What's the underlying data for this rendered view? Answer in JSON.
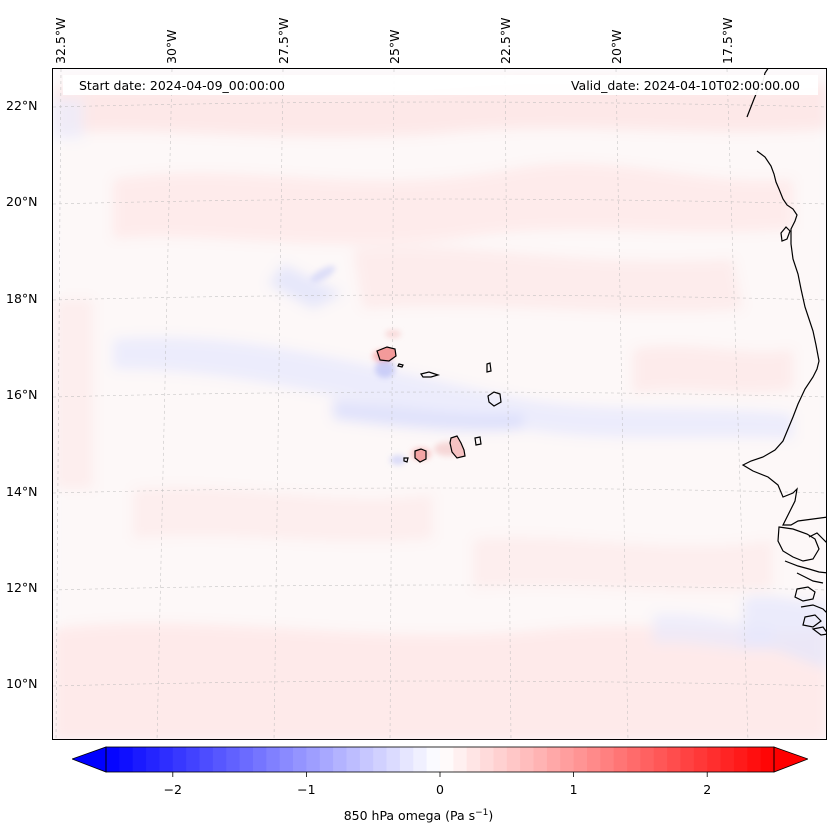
{
  "map": {
    "start_date": "Start date: 2024-04-09_00:00:00",
    "valid_date": "Valid_date: 2024-04-10T02:00:00.00",
    "lon_labels": [
      "32.5°W",
      "30°W",
      "27.5°W",
      "25°W",
      "22.5°W",
      "20°W",
      "17.5°W"
    ],
    "lat_labels": [
      "22°N",
      "20°N",
      "18°N",
      "16°N",
      "14°N",
      "12°N",
      "10°N"
    ]
  },
  "colorbar": {
    "label": "850 hPa omega (Pa s",
    "label_sup": "−1",
    "label_end": ")",
    "ticks": [
      "−2",
      "−1",
      "0",
      "1",
      "2"
    ],
    "tick_values": [
      -2,
      -1,
      0,
      1,
      2
    ],
    "vmin": -2.5,
    "vmax": 2.5,
    "cmap": "bwr",
    "min_color": "#0000ff",
    "mid_color": "#ffffff",
    "max_color": "#ff0000"
  },
  "colors": {
    "frame": "#000000",
    "gridline": "#b4b4b4",
    "coastline": "#000000"
  }
}
